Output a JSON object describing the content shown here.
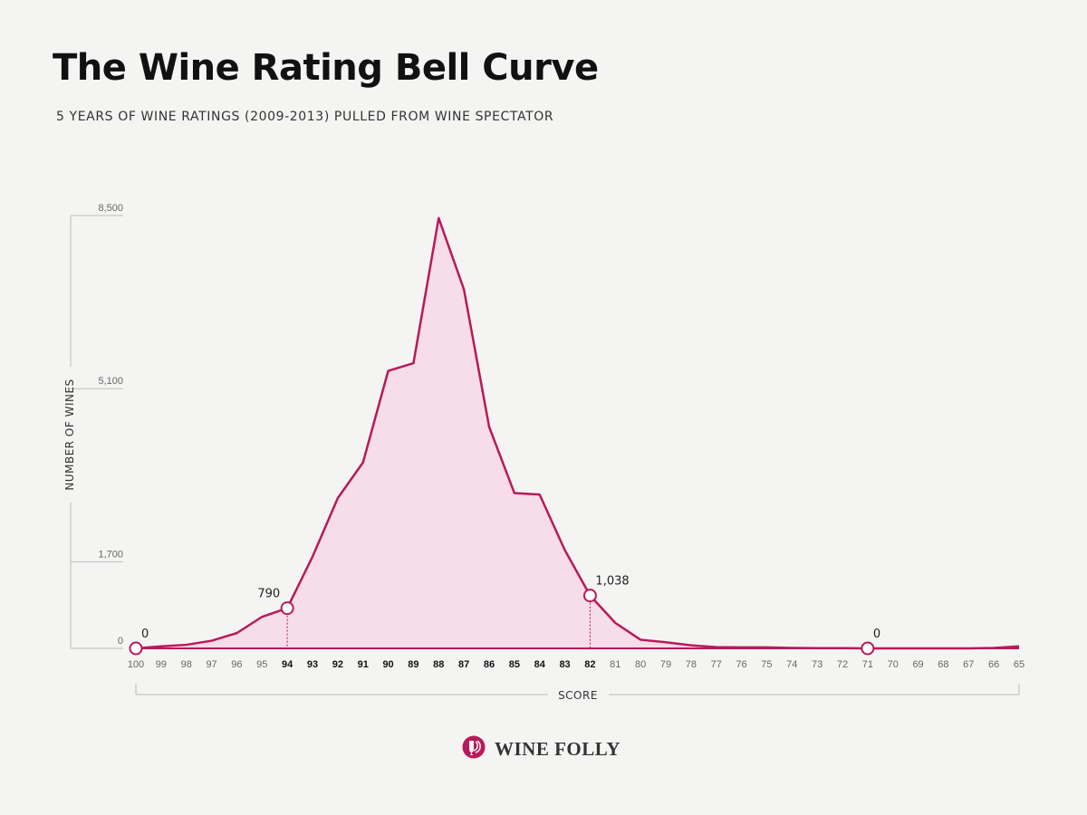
{
  "header": {
    "title": "The Wine Rating Bell Curve",
    "subtitle": "5 YEARS OF WINE RATINGS (2009-2013) PULLED FROM WINE SPECTATOR"
  },
  "brand": {
    "name": "WINE FOLLY",
    "logo_icon": "wine-folly-logo-icon"
  },
  "colors": {
    "line": "#b8195a",
    "fill": "#f6dde7",
    "axis": "#bbbbbb",
    "text": "#444444"
  },
  "chart_data": {
    "type": "area",
    "xlabel": "SCORE",
    "ylabel": "NUMBER OF WINES",
    "ylim": [
      0,
      8500
    ],
    "y_ticks": [
      {
        "value": 0,
        "label": "0"
      },
      {
        "value": 1700,
        "label": "1,700"
      },
      {
        "value": 5100,
        "label": "5,100"
      },
      {
        "value": 8500,
        "label": "8,500"
      }
    ],
    "x": [
      100,
      99,
      98,
      97,
      96,
      95,
      94,
      93,
      92,
      91,
      90,
      89,
      88,
      87,
      86,
      85,
      84,
      83,
      82,
      81,
      80,
      79,
      78,
      77,
      76,
      75,
      74,
      73,
      72,
      71,
      70,
      69,
      68,
      67,
      66,
      65
    ],
    "bold_ticks": [
      94,
      93,
      92,
      91,
      90,
      89,
      88,
      87,
      86,
      85,
      84,
      83,
      82
    ],
    "values": [
      0,
      40,
      70,
      150,
      300,
      620,
      790,
      1800,
      2950,
      3650,
      5450,
      5600,
      8450,
      7050,
      4350,
      3050,
      3020,
      1930,
      1038,
      500,
      170,
      120,
      60,
      25,
      20,
      20,
      10,
      5,
      5,
      0,
      0,
      0,
      0,
      0,
      10,
      40
    ],
    "annotations": [
      {
        "x": 100,
        "y": 0,
        "label": "0",
        "label_pos": "above-right",
        "dashed": false
      },
      {
        "x": 94,
        "y": 790,
        "label": "790",
        "label_pos": "above-left",
        "dashed": true
      },
      {
        "x": 82,
        "y": 1038,
        "label": "1,038",
        "label_pos": "above-right",
        "dashed": true
      },
      {
        "x": 71,
        "y": 0,
        "label": "0",
        "label_pos": "above-right",
        "dashed": false
      }
    ]
  }
}
